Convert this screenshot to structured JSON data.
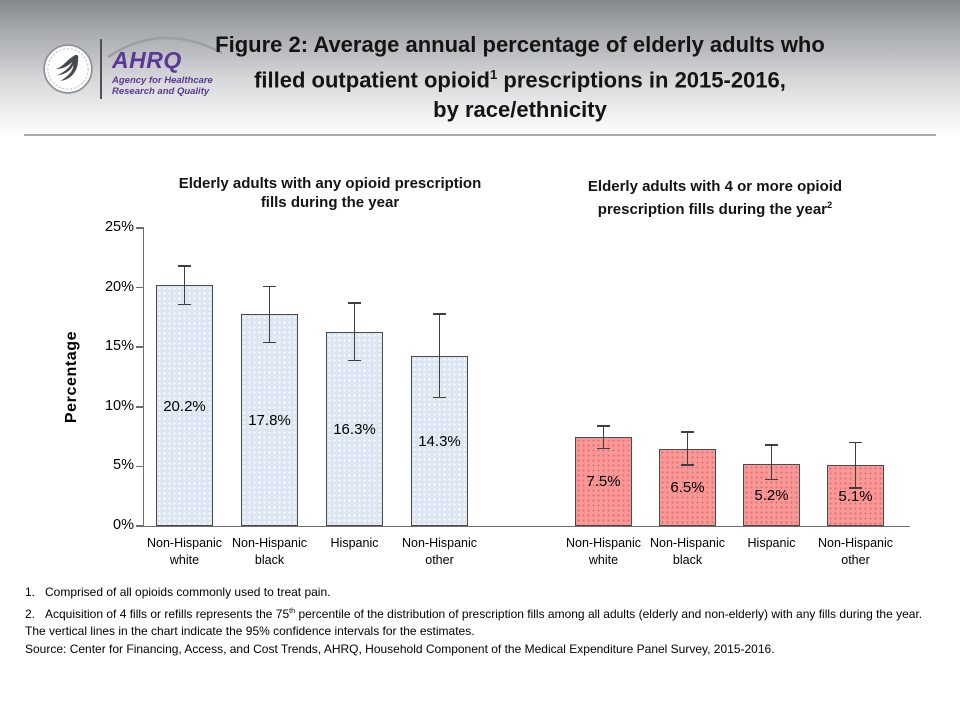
{
  "header": {
    "logo": {
      "org_abbrev": "AHRQ",
      "tagline_line1": "Agency for Healthcare",
      "tagline_line2": "Research and Quality"
    },
    "title": {
      "line1": "Figure 2: Average annual percentage of elderly adults who",
      "line2_pre": "filled outpatient opioid",
      "line2_sup": "1",
      "line2_post": " prescriptions in 2015-2016,",
      "line3": "by race/ethnicity"
    }
  },
  "chart_data": {
    "type": "bar",
    "title": "Figure 2: Average annual percentage of elderly adults who filled outpatient opioid prescriptions in 2015-2016, by race/ethnicity",
    "ylabel": "Percentage",
    "ylim": [
      0,
      25
    ],
    "grid": false,
    "error_bars": "95% confidence intervals",
    "yticks": [
      {
        "value": 0,
        "label": "0%"
      },
      {
        "value": 5,
        "label": "5%"
      },
      {
        "value": 10,
        "label": "10%"
      },
      {
        "value": 15,
        "label": "15%"
      },
      {
        "value": 20,
        "label": "20%"
      },
      {
        "value": 25,
        "label": "25%"
      }
    ],
    "groups": [
      {
        "name": "any-opioid-fills",
        "title": {
          "line1": "Elderly adults with any opioid prescription",
          "line2": "fills during the year",
          "sup": ""
        },
        "categories": [
          [
            "Non-Hispanic",
            "white"
          ],
          [
            "Non-Hispanic",
            "black"
          ],
          [
            "Hispanic"
          ],
          [
            "Non-Hispanic",
            "other"
          ]
        ],
        "values": [
          20.2,
          17.8,
          16.3,
          14.3
        ],
        "labels": [
          "20.2%",
          "17.8%",
          "16.3%",
          "14.3%"
        ],
        "ci_low": [
          18.6,
          15.4,
          13.9,
          10.8
        ],
        "ci_high": [
          21.8,
          20.1,
          18.7,
          17.8
        ],
        "bar_color": "#dce6f2",
        "border_color": "#4a4a4a"
      },
      {
        "name": "four-or-more-opioid-fills",
        "title": {
          "line1": "Elderly adults with 4 or more opioid",
          "line2": "prescription fills during the year",
          "sup": "2"
        },
        "categories": [
          [
            "Non-Hispanic",
            "white"
          ],
          [
            "Non-Hispanic",
            "black"
          ],
          [
            "Hispanic"
          ],
          [
            "Non-Hispanic",
            "other"
          ]
        ],
        "values": [
          7.5,
          6.5,
          5.2,
          5.1
        ],
        "labels": [
          "7.5%",
          "6.5%",
          "5.2%",
          "5.1%"
        ],
        "ci_low": [
          6.5,
          5.1,
          3.9,
          3.2
        ],
        "ci_high": [
          8.4,
          7.9,
          6.8,
          7.0
        ],
        "bar_color": "#fa9897",
        "border_color": "#4a4a4a"
      }
    ]
  },
  "footnotes": {
    "items": [
      {
        "num": "1.",
        "pre": "Comprised of all opioids commonly used to treat pain.",
        "sup": "",
        "post": ""
      },
      {
        "num": "2.",
        "pre": "Acquisition of 4 fills or refills represents the 75",
        "sup": "th",
        "post": " percentile of the distribution of prescription fills among all adults (elderly and non-elderly) with any fills during the year."
      }
    ],
    "ci_note": "The vertical lines in the chart indicate the 95% confidence intervals for the estimates.",
    "source": "Source: Center for Financing, Access, and Cost Trends, AHRQ, Household Component of the Medical Expenditure Panel Survey, 2015-2016."
  }
}
